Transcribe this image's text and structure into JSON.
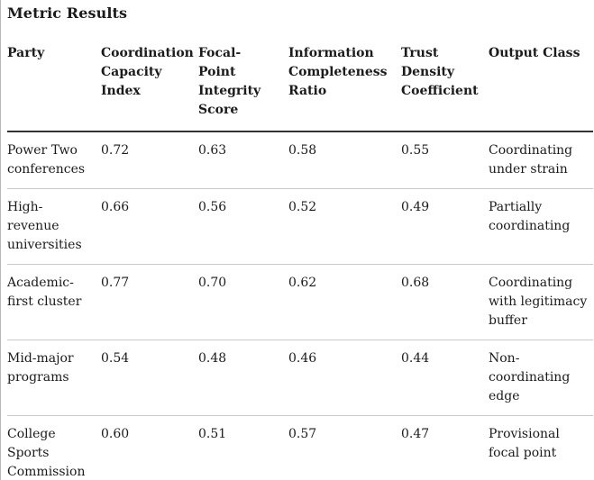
{
  "title": "Metric Results",
  "table": {
    "columns": [
      "Party",
      "Coordination Capacity Index",
      "Focal-Point Integrity Score",
      "Information Completeness Ratio",
      "Trust Density Coefficient",
      "Output Class"
    ],
    "rows": [
      {
        "party": "Power Two conferences",
        "coordination_capacity_index": "0.72",
        "focal_point_integrity_score": "0.63",
        "information_completeness_ratio": "0.58",
        "trust_density_coefficient": "0.55",
        "output_class": "Coordinating under strain"
      },
      {
        "party": "High-revenue universities",
        "coordination_capacity_index": "0.66",
        "focal_point_integrity_score": "0.56",
        "information_completeness_ratio": "0.52",
        "trust_density_coefficient": "0.49",
        "output_class": "Partially coordinating"
      },
      {
        "party": "Academic-first cluster",
        "coordination_capacity_index": "0.77",
        "focal_point_integrity_score": "0.70",
        "information_completeness_ratio": "0.62",
        "trust_density_coefficient": "0.68",
        "output_class": "Coordinating with legitimacy buffer"
      },
      {
        "party": "Mid-major programs",
        "coordination_capacity_index": "0.54",
        "focal_point_integrity_score": "0.48",
        "information_completeness_ratio": "0.46",
        "trust_density_coefficient": "0.44",
        "output_class": "Non-coordinating edge"
      },
      {
        "party": "College Sports Commission",
        "coordination_capacity_index": "0.60",
        "focal_point_integrity_score": "0.51",
        "information_completeness_ratio": "0.57",
        "trust_density_coefficient": "0.47",
        "output_class": "Provisional focal point"
      }
    ]
  },
  "colors": {
    "text": "#1b1b1b",
    "header_rule": "#333333",
    "row_rule": "#c9c9c9",
    "background": "#ffffff"
  }
}
